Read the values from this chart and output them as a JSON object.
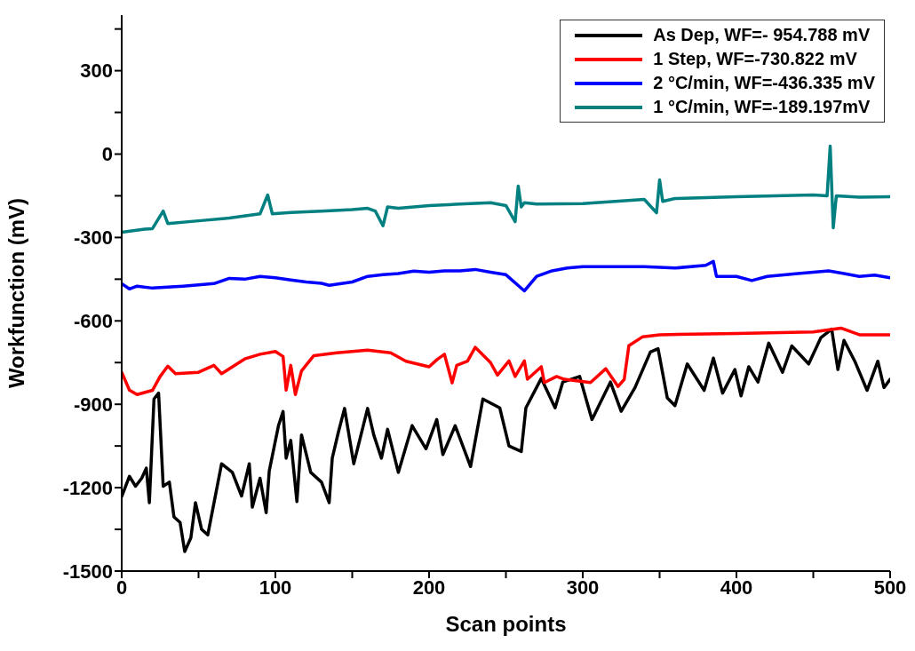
{
  "chart_data": {
    "type": "line",
    "xlabel": "Scan points",
    "ylabel": "Workfunction (mV)",
    "xlim": [
      0,
      500
    ],
    "ylim": [
      -1500,
      500
    ],
    "xticks": [
      0,
      {
        "value": 50,
        "label": null
      },
      100,
      {
        "value": 150,
        "label": null
      },
      200,
      {
        "value": 250,
        "label": null
      },
      300,
      {
        "value": 350,
        "label": null
      },
      400,
      {
        "value": 450,
        "label": null
      },
      500
    ],
    "yticks": [
      -1500,
      {
        "value": -1350,
        "label": null
      },
      -1200,
      {
        "value": -1050,
        "label": null
      },
      -900,
      {
        "value": -750,
        "label": null
      },
      -600,
      {
        "value": -450,
        "label": null
      },
      -300,
      {
        "value": -150,
        "label": null
      },
      0,
      {
        "value": 150,
        "label": null
      },
      300,
      {
        "value": 450,
        "label": null
      }
    ],
    "grid": false,
    "legend": "top right",
    "marker": "none",
    "line_style": "solid",
    "series": [
      {
        "name": "As Dep, WF=- 954.788 mV",
        "color": "#000000",
        "x": [
          0,
          5,
          9,
          13,
          16,
          18,
          21,
          24,
          27,
          31,
          34,
          38,
          41,
          45,
          48,
          52,
          56,
          65,
          72,
          78,
          83,
          85,
          90,
          94,
          96,
          102,
          105,
          107,
          110,
          114,
          117,
          123,
          130,
          135,
          137,
          141,
          145,
          151,
          160,
          164,
          169,
          173,
          180,
          189,
          198,
          205,
          209,
          217,
          227,
          235,
          246,
          252,
          260,
          263,
          273,
          282,
          287,
          298,
          306,
          318,
          325,
          334,
          344,
          349,
          355,
          360,
          368,
          379,
          385,
          391,
          399,
          403,
          408,
          414,
          421,
          430,
          436,
          447,
          455,
          462,
          466,
          470,
          477,
          485,
          492,
          496,
          500
        ],
        "values": [
          -1232,
          -1159,
          -1195,
          -1166,
          -1130,
          -1254,
          -881,
          -860,
          -1195,
          -1180,
          -1305,
          -1325,
          -1430,
          -1380,
          -1254,
          -1350,
          -1370,
          -1114,
          -1145,
          -1230,
          -1114,
          -1270,
          -1166,
          -1290,
          -1140,
          -977,
          -926,
          -1094,
          -1030,
          -1250,
          -1010,
          -1145,
          -1180,
          -1254,
          -1094,
          -1000,
          -915,
          -1114,
          -915,
          -1010,
          -1094,
          -990,
          -1145,
          -977,
          -1060,
          -955,
          -1081,
          -977,
          -1124,
          -881,
          -913,
          -1050,
          -1070,
          -913,
          -807,
          -913,
          -820,
          -800,
          -955,
          -820,
          -925,
          -840,
          -712,
          -700,
          -877,
          -905,
          -755,
          -850,
          -734,
          -860,
          -775,
          -870,
          -765,
          -820,
          -680,
          -785,
          -690,
          -755,
          -660,
          -630,
          -775,
          -670,
          -745,
          -850,
          -745,
          -840,
          -810
        ]
      },
      {
        "name": "1 Step, WF=-730.822 mV",
        "color": "#ff0000",
        "x": [
          0,
          5,
          10,
          20,
          25,
          30,
          35,
          50,
          60,
          65,
          80,
          90,
          100,
          105,
          107,
          110,
          113,
          117,
          125,
          140,
          160,
          175,
          185,
          200,
          205,
          210,
          215,
          218,
          225,
          230,
          240,
          244.5,
          252,
          256,
          262,
          264,
          273,
          275,
          283,
          288,
          305,
          315,
          323,
          327,
          330,
          339,
          350,
          400,
          450,
          468,
          480,
          500
        ],
        "values": [
          -785,
          -849,
          -865,
          -850,
          -800,
          -763,
          -790,
          -785,
          -760,
          -790,
          -737,
          -720,
          -710,
          -728,
          -849,
          -760,
          -865,
          -780,
          -725,
          -715,
          -705,
          -715,
          -745,
          -765,
          -740,
          -720,
          -823,
          -760,
          -745,
          -695,
          -750,
          -795,
          -744,
          -800,
          -744,
          -810,
          -765,
          -822,
          -800,
          -810,
          -822,
          -772,
          -836,
          -810,
          -689,
          -657,
          -650,
          -645,
          -640,
          -626,
          -650,
          -650
        ]
      },
      {
        "name": "2 °C/min, WF=-436.335 mV",
        "color": "#0000ff",
        "x": [
          0,
          5,
          10,
          20,
          40,
          60,
          70,
          80,
          90,
          100,
          110,
          120,
          130,
          135,
          150,
          160,
          170,
          180,
          190,
          200,
          210,
          220,
          230,
          240,
          250,
          262,
          270,
          280,
          290,
          300,
          320,
          340,
          360,
          380,
          385,
          387,
          400,
          410,
          420,
          440,
          460,
          470,
          480,
          490,
          500
        ],
        "values": [
          -466,
          -485,
          -475,
          -482,
          -475,
          -466,
          -447,
          -450,
          -440,
          -445,
          -453,
          -460,
          -465,
          -472,
          -460,
          -440,
          -434,
          -430,
          -421,
          -425,
          -420,
          -420,
          -415,
          -425,
          -434,
          -492,
          -440,
          -420,
          -410,
          -405,
          -405,
          -405,
          -410,
          -400,
          -386,
          -440,
          -440,
          -455,
          -440,
          -430,
          -420,
          -430,
          -440,
          -435,
          -445
        ]
      },
      {
        "name": "1 °C/min, WF=-189.197mV",
        "color": "#008080",
        "x": [
          0,
          15,
          20,
          27,
          30,
          50,
          70,
          90,
          95,
          98,
          110,
          130,
          150,
          160,
          165,
          170,
          173,
          180,
          200,
          220,
          240,
          250,
          256,
          258,
          260,
          262,
          270,
          300,
          340,
          348,
          350,
          352,
          360,
          400,
          450,
          459,
          461,
          463,
          465,
          480,
          500
        ],
        "values": [
          -281,
          -270,
          -268,
          -205,
          -250,
          -240,
          -230,
          -215,
          -147,
          -215,
          -210,
          -205,
          -200,
          -195,
          -205,
          -258,
          -190,
          -195,
          -185,
          -180,
          -175,
          -185,
          -243,
          -115,
          -190,
          -175,
          -180,
          -178,
          -163,
          -211,
          -93,
          -170,
          -160,
          -153,
          -147,
          -150,
          29,
          -265,
          -150,
          -155,
          -153
        ]
      }
    ]
  }
}
